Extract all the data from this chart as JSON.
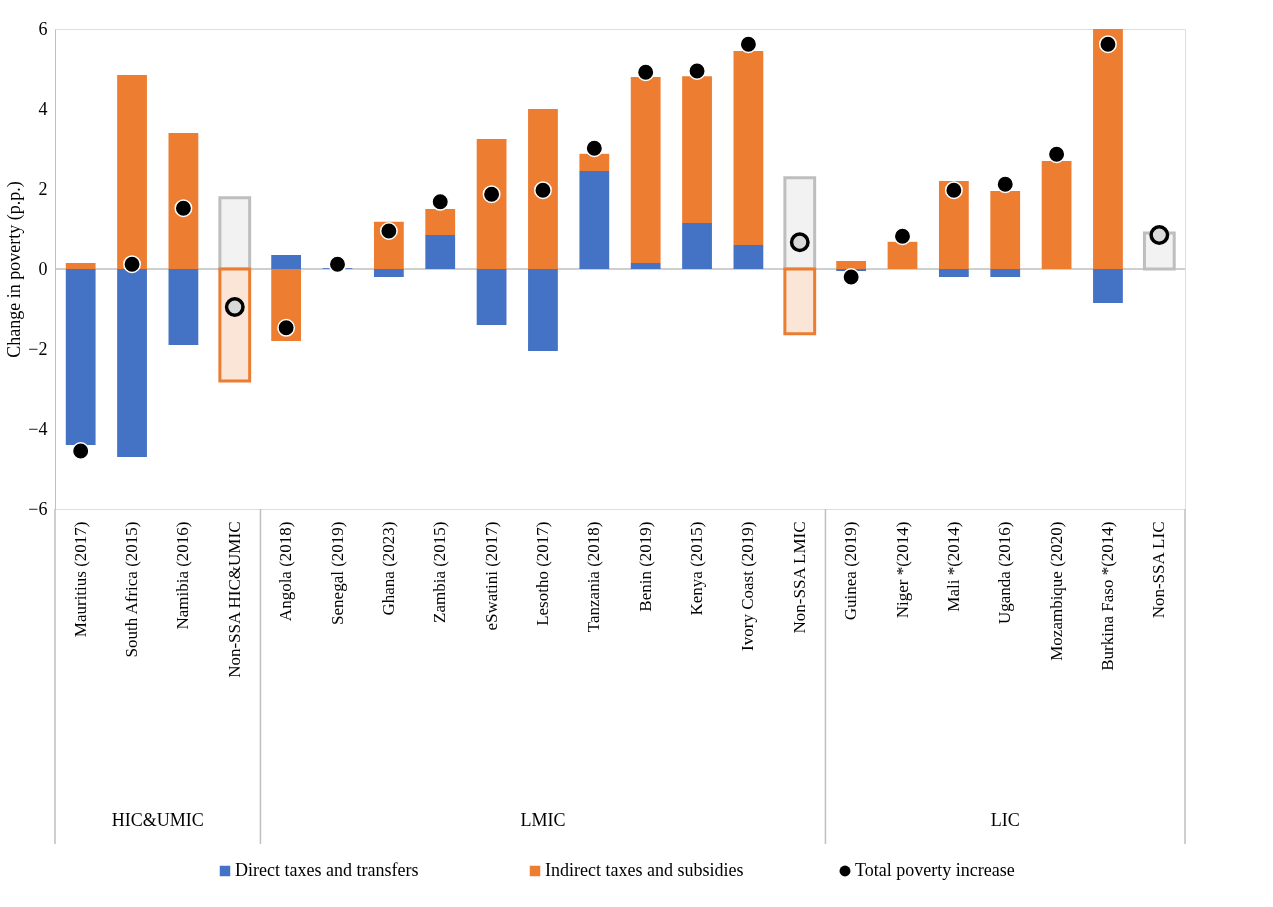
{
  "chart_data": {
    "type": "bar",
    "stacked": true,
    "ylabel": "Change in poverty (p.p.)",
    "ylim": [
      -6,
      6
    ],
    "yticks": [
      -6,
      -4,
      -2,
      0,
      2,
      4,
      6
    ],
    "legend": "bottom",
    "marker": "circle",
    "categories": [
      "Mauritius (2017)",
      "South Africa (2015)",
      "Namibia (2016)",
      "Non-SSA HIC&UMIC",
      "Angola (2018)",
      "Senegal (2019)",
      "Ghana (2023)",
      "Zambia (2015)",
      "eSwatini (2017)",
      "Lesotho (2017)",
      "Tanzania (2018)",
      "Benin (2019)",
      "Kenya (2015)",
      "Ivory Coast (2019)",
      "Non-SSA LMIC",
      "Guinea (2019)",
      "Niger *(2014)",
      "Mali *(2014)",
      "Uganda (2016)",
      "Mozambique (2020)",
      "Burkina Faso *(2014)",
      "Non-SSA LIC"
    ],
    "annotations": [
      "HIC&UMIC",
      "LMIC",
      "LIC"
    ],
    "series": [
      {
        "name": "Direct taxes and transfers",
        "color": "#4472c4",
        "colors": [
          "#4472c4",
          "#4472c4",
          "#4472c4",
          "#f2f2f2",
          "#4472c4",
          "#4472c4",
          "#4472c4",
          "#4472c4",
          "#4472c4",
          "#4472c4",
          "#4472c4",
          "#4472c4",
          "#4472c4",
          "#4472c4",
          "#f2f2f2",
          "#4472c4",
          "#4472c4",
          "#4472c4",
          "#4472c4",
          "#4472c4",
          "#4472c4",
          "#f2f2f2"
        ],
        "values": [
          -4.4,
          -4.7,
          -1.9,
          1.78,
          0.35,
          0.02,
          -0.2,
          0.85,
          -1.4,
          -2.05,
          2.45,
          0.15,
          1.15,
          0.6,
          2.28,
          -0.05,
          null,
          -0.2,
          -0.2,
          null,
          -0.85,
          0.9
        ]
      },
      {
        "name": "Indirect taxes and subsidies",
        "color": "#ed7d31",
        "colors": [
          "#ed7d31",
          "#ed7d31",
          "#ed7d31",
          "#fbe5d6",
          "#ed7d31",
          "#ed7d31",
          "#ed7d31",
          "#ed7d31",
          "#ed7d31",
          "#ed7d31",
          "#ed7d31",
          "#ed7d31",
          "#ed7d31",
          "#ed7d31",
          "#fbe5d6",
          "#ed7d31",
          "#ed7d31",
          "#ed7d31",
          "#ed7d31",
          "#ed7d31",
          "#ed7d31",
          "#ed7d31"
        ],
        "values": [
          0.15,
          4.85,
          3.4,
          -2.8,
          -1.8,
          null,
          1.18,
          0.65,
          3.25,
          4.0,
          0.43,
          4.65,
          3.67,
          4.85,
          -1.62,
          0.2,
          0.68,
          2.2,
          1.95,
          2.7,
          6.0,
          null
        ]
      },
      {
        "name": "Total poverty increase",
        "type": "scatter",
        "color": "#000000",
        "colors": [
          "#000000",
          "#000000",
          "#000000",
          "#d9d9d9",
          "#000000",
          "#000000",
          "#000000",
          "#000000",
          "#000000",
          "#000000",
          "#000000",
          "#000000",
          "#000000",
          "#000000",
          "#d9d9d9",
          "#000000",
          "#000000",
          "#000000",
          "#000000",
          "#000000",
          "#000000",
          "#d9d9d9"
        ],
        "x": [
          "Mauritius (2017)",
          "South Africa (2015)",
          "Namibia (2016)",
          "Non-SSA HIC&UMIC",
          "Angola (2018)",
          "Senegal (2019)",
          "Ghana (2023)",
          "Zambia (2015)",
          "eSwatini (2017)",
          "Lesotho (2017)",
          "Tanzania (2018)",
          "Benin (2019)",
          "Kenya (2015)",
          "Ivory Coast (2019)",
          "Non-SSA LMIC",
          "Guinea (2019)",
          "Niger *(2014)",
          "Mali *(2014)",
          "Uganda (2016)",
          "Mozambique (2020)",
          "Burkina Faso *(2014)",
          "Non-SSA LIC"
        ],
        "values": [
          -4.55,
          0.12,
          1.52,
          -0.95,
          -1.47,
          0.12,
          0.95,
          1.68,
          1.87,
          1.97,
          3.02,
          4.92,
          4.95,
          5.62,
          0.67,
          -0.2,
          0.82,
          1.97,
          2.12,
          2.87,
          5.62,
          0.85
        ]
      }
    ]
  }
}
